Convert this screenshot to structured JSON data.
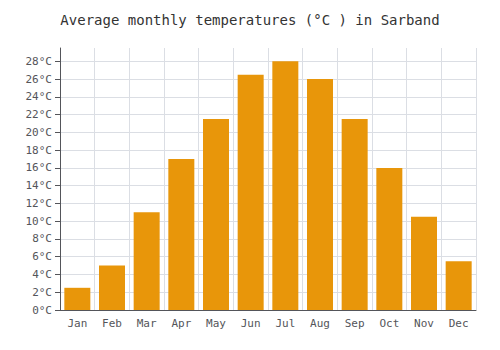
{
  "chart_data": {
    "type": "bar",
    "title": "Average monthly temperatures (°C ) in Sarband",
    "categories": [
      "Jan",
      "Feb",
      "Mar",
      "Apr",
      "May",
      "Jun",
      "Jul",
      "Aug",
      "Sep",
      "Oct",
      "Nov",
      "Dec"
    ],
    "values": [
      2.5,
      5.0,
      11.0,
      17.0,
      21.5,
      26.5,
      28.0,
      26.0,
      21.5,
      16.0,
      10.5,
      5.5
    ],
    "color": "#E8960A",
    "ylim": [
      0,
      29.5
    ],
    "yticks": [
      {
        "value": 0,
        "label": "0°C"
      },
      {
        "value": 2,
        "label": "2°C"
      },
      {
        "value": 4,
        "label": "4°C"
      },
      {
        "value": 6,
        "label": "6°C"
      },
      {
        "value": 8,
        "label": "8°C"
      },
      {
        "value": 10,
        "label": "10°C"
      },
      {
        "value": 12,
        "label": "12°C"
      },
      {
        "value": 14,
        "label": "14°C"
      },
      {
        "value": 16,
        "label": "16°C"
      },
      {
        "value": 18,
        "label": "18°C"
      },
      {
        "value": 20,
        "label": "20°C"
      },
      {
        "value": 22,
        "label": "22°C"
      },
      {
        "value": 24,
        "label": "24°C"
      },
      {
        "value": 26,
        "label": "26°C"
      },
      {
        "value": 28,
        "label": "28°C"
      }
    ],
    "grid": true
  }
}
